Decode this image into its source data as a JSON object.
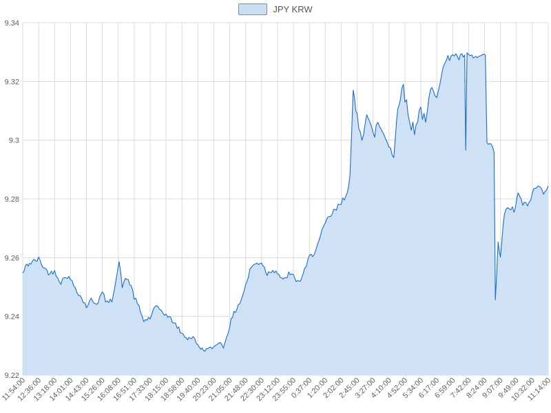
{
  "chart_data": {
    "type": "area",
    "title": "JPY KRW",
    "legend": {
      "label": "JPY KRW",
      "position": "top"
    },
    "grid": true,
    "ylim": [
      9.22,
      9.34
    ],
    "y_tick_labels": [
      "9.22",
      "9.24",
      "9.26",
      "9.28",
      "9.3",
      "9.32",
      "9.34"
    ],
    "y_tick_values": [
      9.22,
      9.24,
      9.26,
      9.28,
      9.3,
      9.32,
      9.34
    ],
    "x_tick_labels": [
      "11:54:00",
      "12:36:00",
      "13:18:00",
      "14:01:00",
      "14:43:00",
      "15:26:00",
      "16:08:00",
      "16:51:00",
      "17:33:00",
      "18:15:00",
      "18:58:00",
      "19:40:00",
      "20:23:00",
      "21:05:00",
      "21:48:00",
      "22:30:00",
      "23:12:00",
      "23:55:00",
      "0:37:00",
      "1:20:00",
      "2:02:00",
      "2:45:00",
      "3:27:00",
      "4:10:00",
      "4:52:00",
      "5:34:00",
      "6:17:00",
      "6:59:00",
      "7:42:00",
      "8:24:00",
      "9:07:00",
      "9:49:00",
      "10:32:00",
      "11:14:00"
    ],
    "series": [
      {
        "name": "JPY KRW",
        "line_color": "#1a6cc8",
        "fill_color": "#cfe1f5",
        "points_format": "[x_index, value, noise_amplitude]",
        "points": [
          [
            0.0,
            9.2545,
            0.0012
          ],
          [
            0.25,
            9.2575,
            0.001
          ],
          [
            0.6,
            9.2585,
            0.001
          ],
          [
            1.0,
            9.2595,
            0.0009
          ],
          [
            1.35,
            9.2565,
            0.0009
          ],
          [
            1.7,
            9.2545,
            0.0009
          ],
          [
            2.0,
            9.2555,
            0.0009
          ],
          [
            2.4,
            9.2515,
            0.0009
          ],
          [
            2.7,
            9.254,
            0.0009
          ],
          [
            3.0,
            9.2525,
            0.0009
          ],
          [
            3.4,
            9.249,
            0.0009
          ],
          [
            3.7,
            9.246,
            0.001
          ],
          [
            4.0,
            9.2435,
            0.001
          ],
          [
            4.3,
            9.2455,
            0.001
          ],
          [
            4.65,
            9.2445,
            0.0009
          ],
          [
            5.0,
            9.248,
            0.0009
          ],
          [
            5.3,
            9.2445,
            0.0009
          ],
          [
            5.6,
            9.2455,
            0.0008
          ],
          [
            5.85,
            9.2525,
            0.0008
          ],
          [
            6.05,
            9.2585,
            0.0007
          ],
          [
            6.25,
            9.2505,
            0.0009
          ],
          [
            6.55,
            9.253,
            0.0009
          ],
          [
            6.8,
            9.2505,
            0.0009
          ],
          [
            7.0,
            9.2465,
            0.0009
          ],
          [
            7.3,
            9.243,
            0.0009
          ],
          [
            7.6,
            9.2385,
            0.0009
          ],
          [
            8.0,
            9.2395,
            0.0009
          ],
          [
            8.3,
            9.243,
            0.0009
          ],
          [
            8.6,
            9.2425,
            0.0008
          ],
          [
            9.0,
            9.2405,
            0.0008
          ],
          [
            9.4,
            9.2385,
            0.0008
          ],
          [
            9.7,
            9.2365,
            0.0008
          ],
          [
            10.0,
            9.234,
            0.0007
          ],
          [
            10.35,
            9.2325,
            0.0007
          ],
          [
            10.7,
            9.233,
            0.0007
          ],
          [
            11.0,
            9.23,
            0.0006
          ],
          [
            11.35,
            9.2285,
            0.0005
          ],
          [
            11.7,
            9.229,
            0.0005
          ],
          [
            12.0,
            9.2295,
            0.0006
          ],
          [
            12.3,
            9.2315,
            0.0007
          ],
          [
            12.6,
            9.2295,
            0.0007
          ],
          [
            13.0,
            9.237,
            0.001
          ],
          [
            13.35,
            9.242,
            0.001
          ],
          [
            13.7,
            9.2455,
            0.001
          ],
          [
            14.0,
            9.2505,
            0.001
          ],
          [
            14.35,
            9.257,
            0.0009
          ],
          [
            14.7,
            9.258,
            0.0009
          ],
          [
            15.0,
            9.2585,
            0.0009
          ],
          [
            15.35,
            9.2545,
            0.0009
          ],
          [
            15.7,
            9.256,
            0.0009
          ],
          [
            16.0,
            9.255,
            0.0009
          ],
          [
            16.35,
            9.252,
            0.0009
          ],
          [
            16.7,
            9.2545,
            0.0009
          ],
          [
            17.0,
            9.2535,
            0.0009
          ],
          [
            17.35,
            9.2515,
            0.0009
          ],
          [
            17.7,
            9.2555,
            0.0009
          ],
          [
            18.0,
            9.26,
            0.0011
          ],
          [
            18.3,
            9.262,
            0.0011
          ],
          [
            18.6,
            9.2655,
            0.0011
          ],
          [
            19.0,
            9.2715,
            0.0013
          ],
          [
            19.35,
            9.2745,
            0.0013
          ],
          [
            19.7,
            9.2765,
            0.0012
          ],
          [
            20.0,
            9.2785,
            0.0012
          ],
          [
            20.3,
            9.2815,
            0.0013
          ],
          [
            20.55,
            9.2875,
            0.0015
          ],
          [
            20.75,
            9.3145,
            0.0028
          ],
          [
            21.0,
            9.308,
            0.0028
          ],
          [
            21.3,
            9.302,
            0.0028
          ],
          [
            21.6,
            9.309,
            0.0028
          ],
          [
            22.0,
            9.301,
            0.0028
          ],
          [
            22.3,
            9.306,
            0.0026
          ],
          [
            22.6,
            9.303,
            0.0026
          ],
          [
            23.0,
            9.299,
            0.002
          ],
          [
            23.3,
            9.294,
            0.0013
          ],
          [
            23.55,
            9.311,
            0.0026
          ],
          [
            23.8,
            9.319,
            0.0022
          ],
          [
            24.0,
            9.315,
            0.0024
          ],
          [
            24.3,
            9.306,
            0.0024
          ],
          [
            24.6,
            9.304,
            0.0024
          ],
          [
            25.0,
            9.311,
            0.0024
          ],
          [
            25.3,
            9.305,
            0.0022
          ],
          [
            25.6,
            9.317,
            0.002
          ],
          [
            26.0,
            9.316,
            0.0018
          ],
          [
            26.3,
            9.323,
            0.0016
          ],
          [
            26.6,
            9.327,
            0.0013
          ],
          [
            27.0,
            9.3295,
            0.0011
          ],
          [
            27.4,
            9.328,
            0.0011
          ],
          [
            27.75,
            9.329,
            0.001
          ],
          [
            27.82,
            9.2965,
            0.0002
          ],
          [
            27.9,
            9.329,
            0.0009
          ],
          [
            28.2,
            9.3285,
            0.0009
          ],
          [
            28.55,
            9.328,
            0.0008
          ],
          [
            28.85,
            9.329,
            0.0007
          ],
          [
            29.05,
            9.3285,
            0.0005
          ],
          [
            29.15,
            9.299,
            0.0006
          ],
          [
            29.4,
            9.2985,
            0.0007
          ],
          [
            29.6,
            9.296,
            0.0006
          ],
          [
            29.68,
            9.2455,
            0.0002
          ],
          [
            29.85,
            9.264,
            0.0018
          ],
          [
            30.0,
            9.261,
            0.0024
          ],
          [
            30.25,
            9.2745,
            0.0014
          ],
          [
            30.55,
            9.2775,
            0.0013
          ],
          [
            30.85,
            9.2755,
            0.0012
          ],
          [
            31.1,
            9.2815,
            0.0011
          ],
          [
            31.4,
            9.2785,
            0.0011
          ],
          [
            31.7,
            9.2775,
            0.0011
          ],
          [
            32.0,
            9.282,
            0.0011
          ],
          [
            32.35,
            9.2845,
            0.001
          ],
          [
            32.7,
            9.2825,
            0.001
          ],
          [
            33.0,
            9.2845,
            0.0009
          ]
        ]
      }
    ]
  },
  "colors": {
    "background": "#ffffff",
    "grid": "#d9d9d9",
    "axis_text": "#606060",
    "legend_text": "#555555",
    "legend_swatch_fill": "#c9def2",
    "legend_swatch_border": "#8a8a8a"
  }
}
